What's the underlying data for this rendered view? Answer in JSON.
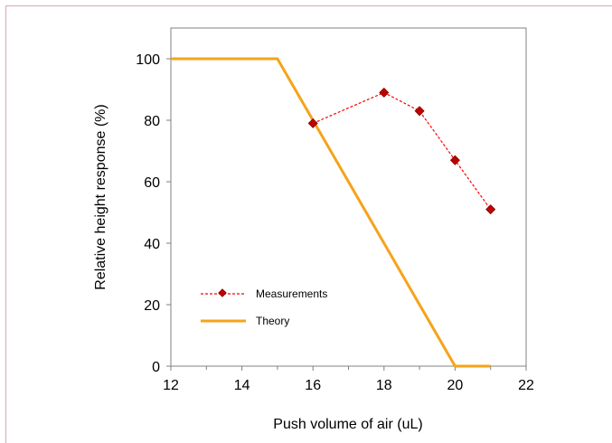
{
  "chart_data": {
    "type": "line",
    "title": "",
    "xlabel": "Push volume of air (uL)",
    "ylabel": "Relative height response (%)",
    "xlim": [
      12,
      22
    ],
    "ylim": [
      0,
      110
    ],
    "xticks": [
      "12",
      "14",
      "16",
      "18",
      "20",
      "22"
    ],
    "yticks": [
      "0",
      "20",
      "40",
      "60",
      "80",
      "100"
    ],
    "xtick_values": [
      12,
      14,
      16,
      18,
      20,
      22
    ],
    "ytick_values": [
      0,
      20,
      40,
      60,
      80,
      100
    ],
    "grid": false,
    "legend_position": "lower-left",
    "series": [
      {
        "name": "Measurements",
        "style": "dashed-line-diamond-markers",
        "line_color": "#ff0000",
        "marker_color": "#c00000",
        "x": [
          16,
          18,
          19,
          20,
          21
        ],
        "y": [
          79,
          89,
          83,
          67,
          51
        ]
      },
      {
        "name": "Theory",
        "style": "solid-line",
        "line_color": "#f5a31a",
        "x": [
          12,
          15,
          20,
          21
        ],
        "y": [
          100,
          100,
          0,
          0
        ]
      }
    ]
  }
}
